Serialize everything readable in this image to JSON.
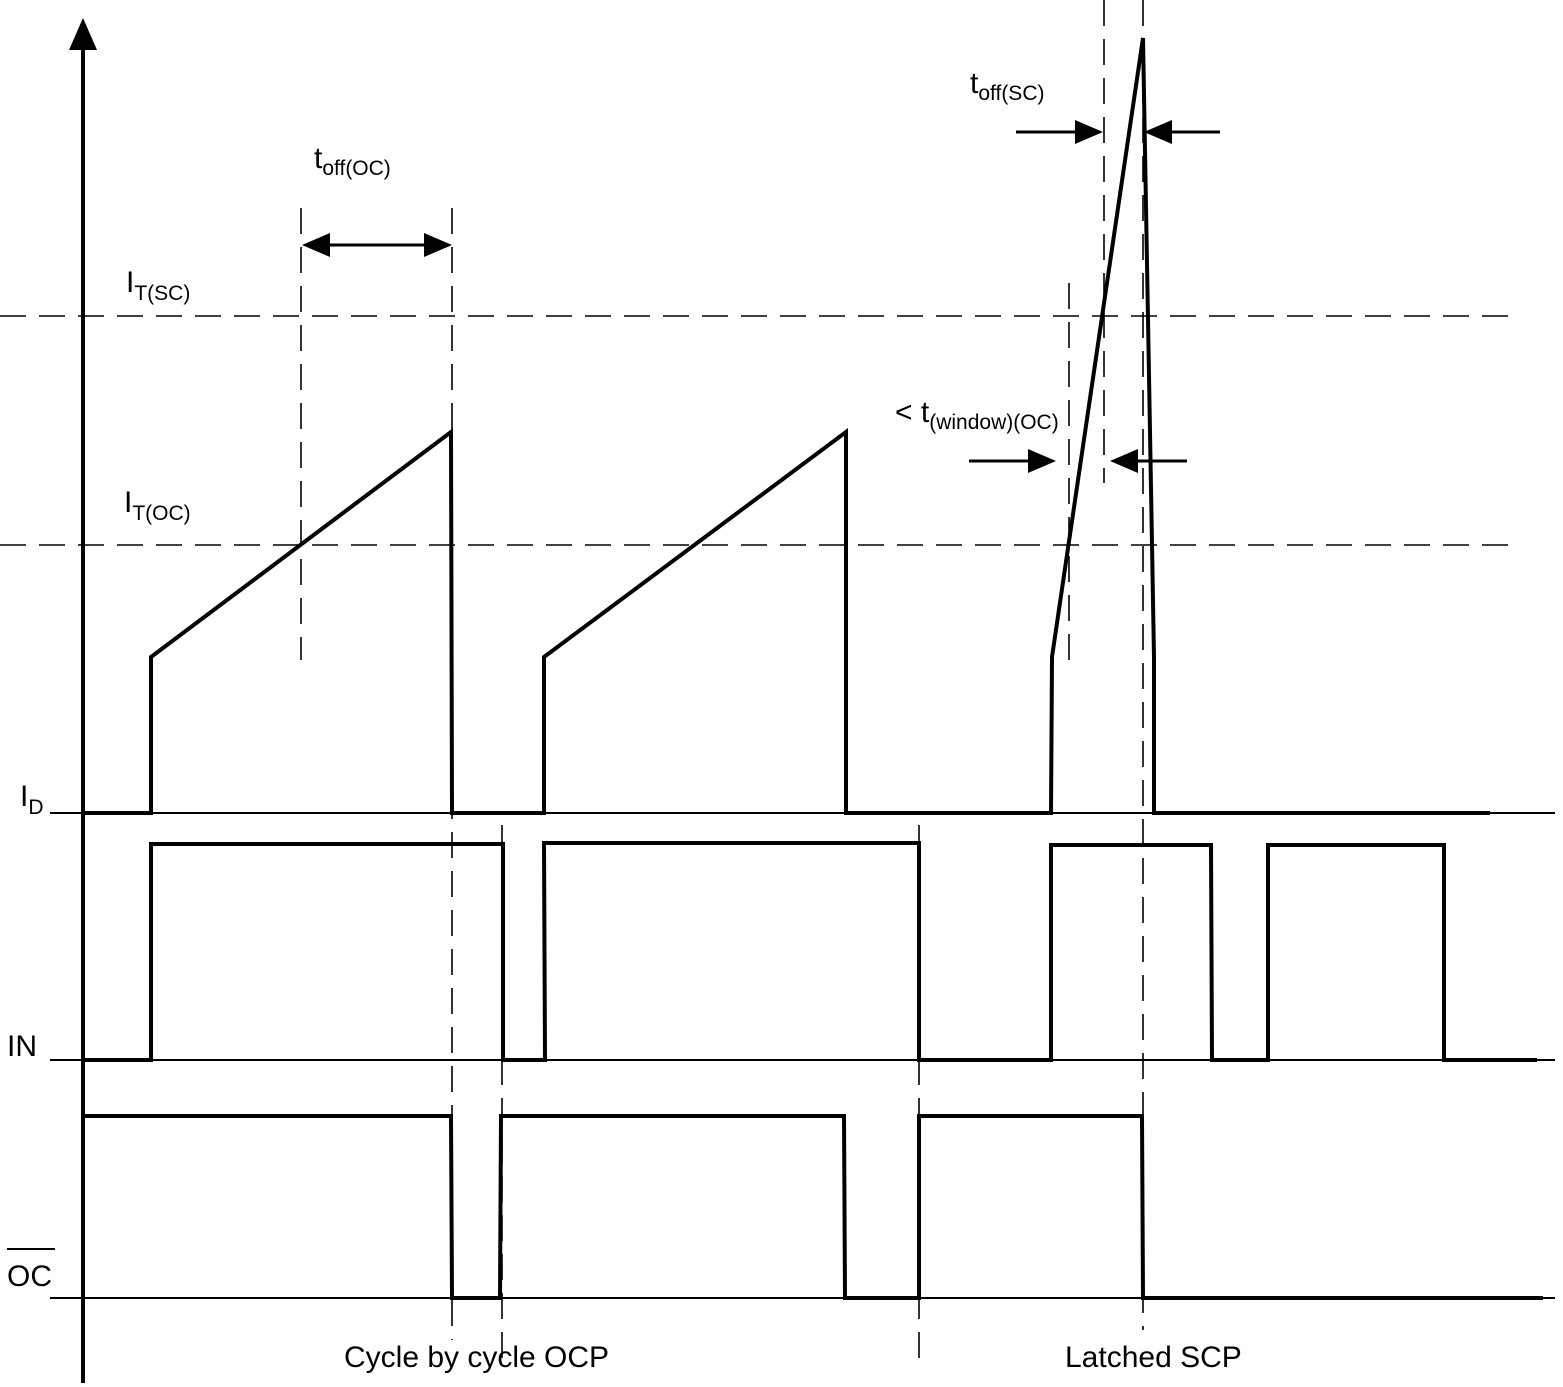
{
  "signals": {
    "id": {
      "main": "I",
      "sub": "D"
    },
    "in": "IN",
    "oc": "OC"
  },
  "thresholds": {
    "sc": {
      "main": "I",
      "sub": "T(SC)"
    },
    "oc": {
      "main": "I",
      "sub": "T(OC)"
    }
  },
  "timing": {
    "toff_oc": {
      "main": "t",
      "sub": "off(OC)"
    },
    "toff_sc": {
      "main": "t",
      "sub": "off(SC)"
    },
    "window": {
      "prefix": "< t",
      "sub": "(window)(OC)"
    }
  },
  "regions": {
    "cycle_ocp": "Cycle by cycle OCP",
    "latched_scp": "Latched SCP"
  }
}
